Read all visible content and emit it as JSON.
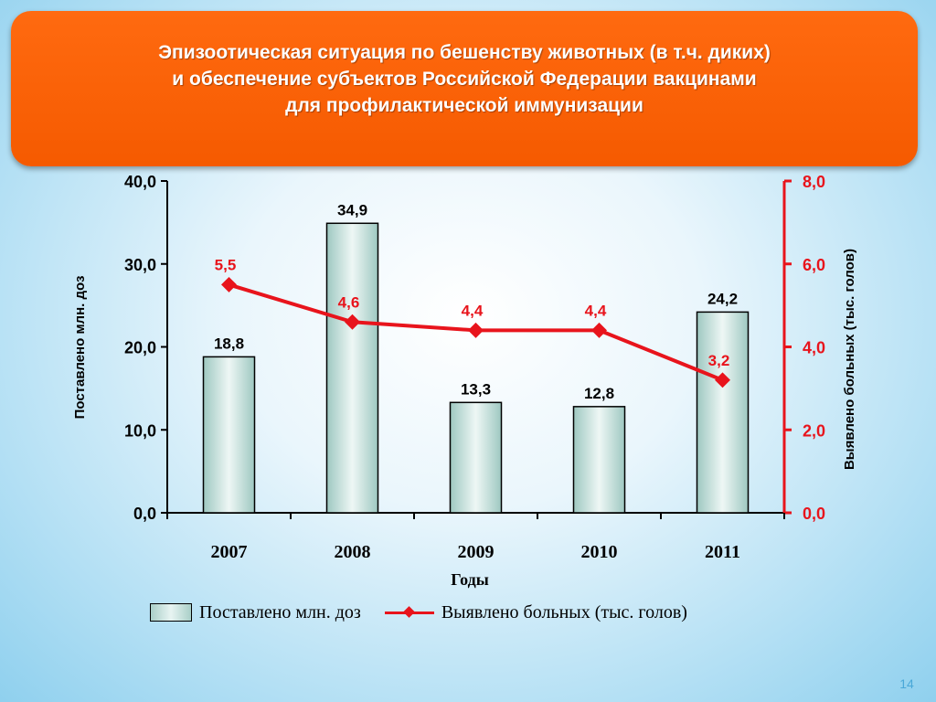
{
  "slide": {
    "title_lines": [
      "Эпизоотическая ситуация по бешенству животных (в т.ч. диких)",
      "и обеспечение субъектов Российской Федерации вакцинами",
      "для профилактической иммунизации"
    ],
    "page_number": "14"
  },
  "chart_data": {
    "type": "bar",
    "categories": [
      "2007",
      "2008",
      "2009",
      "2010",
      "2011"
    ],
    "series": [
      {
        "name": "Поставлено млн. доз",
        "type": "bar",
        "axis": "left",
        "values": [
          18.8,
          34.9,
          13.3,
          12.8,
          24.2
        ],
        "labels": [
          "18,8",
          "34,9",
          "13,3",
          "12,8",
          "24,2"
        ]
      },
      {
        "name": "Выявлено больных (тыс. голов)",
        "type": "line",
        "axis": "right",
        "values": [
          5.5,
          4.6,
          4.4,
          4.4,
          3.2
        ],
        "labels": [
          "5,5",
          "4,6",
          "4,4",
          "4,4",
          "3,2"
        ]
      }
    ],
    "xlabel": "Годы",
    "ylabel": "Поставлено млн. доз",
    "y2label": "Выявлено больных (тыс. голов)",
    "ylim": [
      0,
      40
    ],
    "y2lim": [
      0,
      8
    ],
    "yticks": [
      "0,0",
      "10,0",
      "20,0",
      "30,0",
      "40,0"
    ],
    "y2ticks": [
      "0,0",
      "2,0",
      "4,0",
      "6,0",
      "8,0"
    ],
    "legend_position": "bottom",
    "colors": {
      "line": "#e8141c",
      "bar_edge": "#000000",
      "bar_fill": "#c9e6e1"
    }
  }
}
